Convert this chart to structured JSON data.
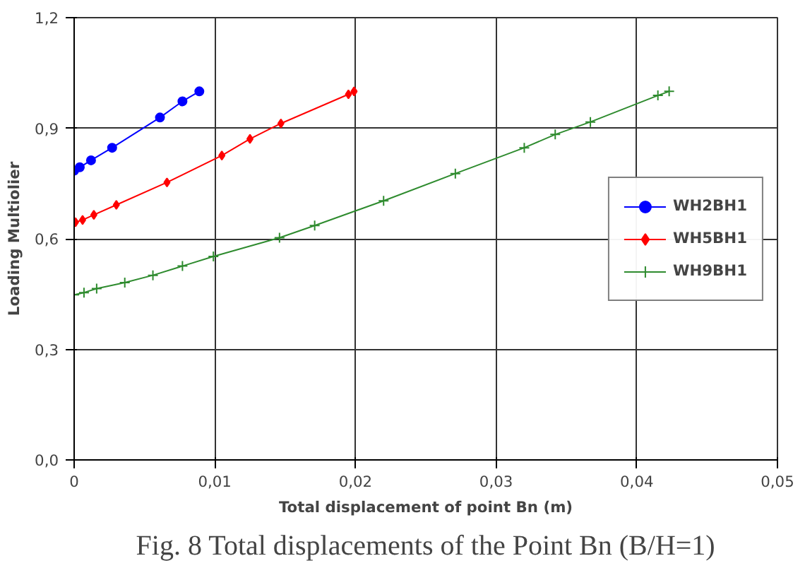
{
  "chart_data": {
    "type": "line",
    "xlabel": "Total displacement of point Bn (m)",
    "ylabel": "Loading Multiolier",
    "annotations": [
      "Fig. 8 Total displacements of the Point Bn (B/H=1)"
    ],
    "xlim": [
      0,
      0.05
    ],
    "xticks": [
      0,
      {
        "value": 0.01,
        "label": "0,01"
      },
      {
        "value": 0.02,
        "label": "0,02"
      },
      {
        "value": 0.03,
        "label": "0,03"
      },
      {
        "value": 0.04,
        "label": "0,04"
      },
      {
        "value": 0.05,
        "label": "0,05"
      }
    ],
    "ylim": [
      0,
      1.2
    ],
    "yticks": [
      {
        "value": 0,
        "label": "0,0"
      },
      {
        "value": 0.3,
        "label": "0,3"
      },
      {
        "value": 0.6,
        "label": "0,6"
      },
      {
        "value": 0.9,
        "label": "0,9"
      },
      {
        "value": 1.2,
        "label": "1,2"
      }
    ],
    "grid": true,
    "legend": "right",
    "series": [
      {
        "name": "WH2BH1",
        "color": "#0000ff",
        "marker": "circle",
        "x": [
          0,
          0.0004,
          0.0012,
          0.0027,
          0.0061,
          0.0077,
          0.0089
        ],
        "values": [
          0.785,
          0.794,
          0.813,
          0.847,
          0.929,
          0.973,
          1.0
        ]
      },
      {
        "name": "WH5BH1",
        "color": "#ff0000",
        "marker": "diamond",
        "x": [
          0.0001,
          0.0006,
          0.0014,
          0.003,
          0.0066,
          0.0105,
          0.0125,
          0.0147,
          0.0195,
          0.0199
        ],
        "values": [
          0.645,
          0.651,
          0.665,
          0.692,
          0.753,
          0.826,
          0.871,
          0.913,
          0.992,
          1.0
        ]
      },
      {
        "name": "WH9BH1",
        "color": "#2e8b2e",
        "marker": "cross",
        "x": [
          0,
          0.0007,
          0.0016,
          0.0036,
          0.0056,
          0.0077,
          0.0099,
          0.0146,
          0.0171,
          0.022,
          0.0271,
          0.032,
          0.0342,
          0.0367,
          0.0415,
          0.0423
        ],
        "values": [
          0.448,
          0.454,
          0.465,
          0.481,
          0.501,
          0.526,
          0.552,
          0.603,
          0.636,
          0.703,
          0.777,
          0.847,
          0.883,
          0.917,
          0.989,
          1.0
        ]
      }
    ]
  }
}
